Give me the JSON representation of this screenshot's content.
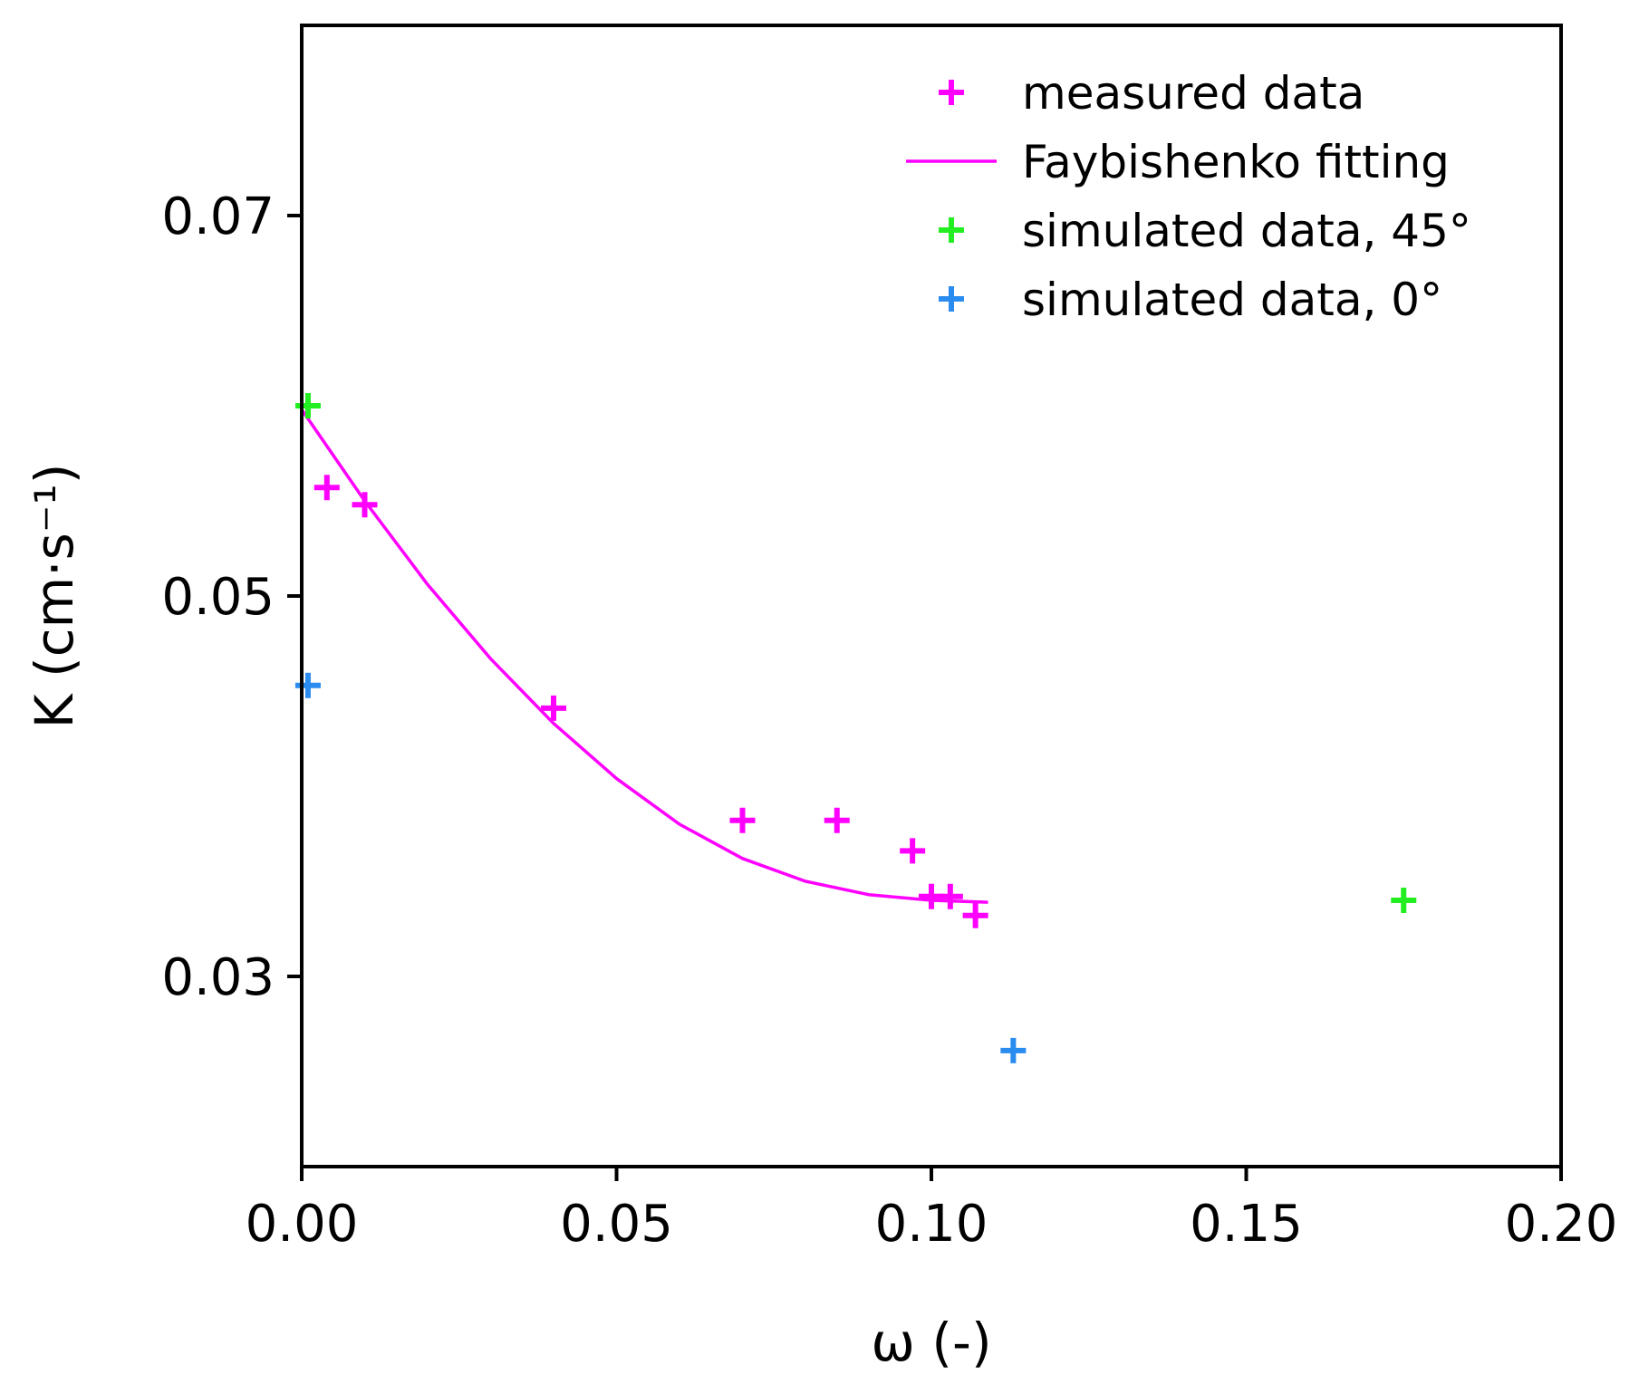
{
  "chart_data": {
    "type": "scatter",
    "title": "",
    "xlabel": "ω (-)",
    "ylabel": "K (cm·s⁻¹)",
    "xlim": [
      0.0,
      0.2
    ],
    "ylim": [
      0.02,
      0.08
    ],
    "xticks": [
      0.0,
      0.05,
      0.1,
      0.15,
      0.2
    ],
    "xtick_labels": [
      "0.00",
      "0.05",
      "0.10",
      "0.15",
      "0.20"
    ],
    "yticks": [
      0.03,
      0.05,
      0.07
    ],
    "ytick_labels": [
      "0.03",
      "0.05",
      "0.07"
    ],
    "grid": false,
    "legend_position": "top-right",
    "series": [
      {
        "name": "measured data",
        "kind": "marker",
        "color": "#ff00ff",
        "x": [
          0.004,
          0.01,
          0.04,
          0.07,
          0.085,
          0.097,
          0.1,
          0.103,
          0.107
        ],
        "y": [
          0.0557,
          0.0548,
          0.0441,
          0.0382,
          0.0382,
          0.0366,
          0.0342,
          0.0342,
          0.0332
        ]
      },
      {
        "name": "Faybishenko fitting",
        "kind": "line",
        "color": "#ff00ff",
        "x": [
          0.0,
          0.01,
          0.02,
          0.03,
          0.04,
          0.05,
          0.06,
          0.07,
          0.08,
          0.09,
          0.1,
          0.109
        ],
        "y": [
          0.0598,
          0.055,
          0.0506,
          0.0467,
          0.0433,
          0.0404,
          0.038,
          0.0362,
          0.035,
          0.0343,
          0.034,
          0.0339
        ]
      },
      {
        "name": "simulated data, 45°",
        "kind": "marker",
        "color": "#22ee22",
        "x": [
          0.001,
          0.175
        ],
        "y": [
          0.06,
          0.034
        ]
      },
      {
        "name": "simulated data, 0°",
        "kind": "marker",
        "color": "#2b8cf0",
        "x": [
          0.001,
          0.113
        ],
        "y": [
          0.0453,
          0.0261
        ]
      }
    ]
  }
}
